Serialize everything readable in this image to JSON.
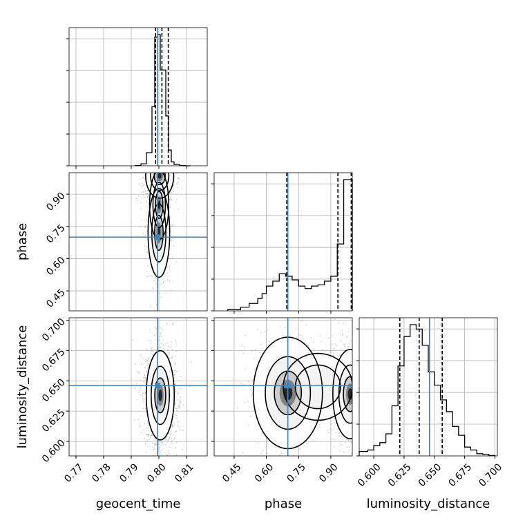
{
  "chart_data": {
    "type": "corner",
    "parameters": [
      "geocent_time",
      "phase",
      "luminosity_distance"
    ],
    "grid": true,
    "colors": {
      "truth": "#4682b4",
      "contour": "#000000",
      "scatter": "#9a9a9a"
    },
    "ranges": {
      "geocent_time": [
        0.7675,
        0.8175
      ],
      "phase": [
        0.357,
        1.0
      ],
      "luminosity_distance": [
        0.588,
        0.702
      ]
    },
    "ticks": {
      "geocent_time": [
        0.77,
        0.78,
        0.79,
        0.8,
        0.81
      ],
      "phase": [
        0.45,
        0.6,
        0.75,
        0.9
      ],
      "luminosity_distance": [
        0.6,
        0.625,
        0.65,
        0.675,
        0.7
      ]
    },
    "tick_labels": {
      "geocent_time": [
        "0.77",
        "0.78",
        "0.79",
        "0.80",
        "0.81"
      ],
      "phase": [
        "0.45",
        "0.60",
        "0.75",
        "0.90"
      ],
      "luminosity_distance": [
        "0.600",
        "0.625",
        "0.650",
        "0.675",
        "0.700"
      ]
    },
    "truths": {
      "geocent_time": 0.7995,
      "phase": 0.7,
      "luminosity_distance": 0.646
    },
    "quantiles": {
      "geocent_time": [
        0.7988,
        0.8011,
        0.8034
      ],
      "phase": [
        0.695,
        0.933,
        0.995
      ],
      "luminosity_distance": [
        0.6215,
        0.6375,
        0.6565
      ]
    },
    "histograms": {
      "geocent_time": {
        "edges": [
          0.7915,
          0.7935,
          0.7955,
          0.7975,
          0.7985,
          0.7995,
          0.8005,
          0.8025,
          0.8035,
          0.8045,
          0.8055,
          0.8075,
          0.8095,
          0.8115
        ],
        "counts": [
          0.2,
          1.5,
          10,
          45,
          98,
          100,
          73,
          38,
          12,
          3,
          1,
          0.2,
          0
        ]
      },
      "phase": {
        "edges": [
          0.42,
          0.48,
          0.52,
          0.56,
          0.58,
          0.6,
          0.63,
          0.66,
          0.69,
          0.72,
          0.75,
          0.78,
          0.81,
          0.84,
          0.87,
          0.9,
          0.93,
          0.96,
          0.99,
          1.0
        ],
        "counts": [
          0.5,
          1.5,
          3,
          5,
          7,
          10,
          12,
          15,
          14,
          12.5,
          10,
          9,
          10,
          10.5,
          12,
          14,
          27,
          53,
          53
        ]
      },
      "luminosity_distance": {
        "edges": [
          0.588,
          0.595,
          0.6,
          0.605,
          0.61,
          0.615,
          0.62,
          0.625,
          0.63,
          0.635,
          0.64,
          0.645,
          0.65,
          0.655,
          0.66,
          0.665,
          0.67,
          0.675,
          0.68,
          0.685,
          0.69,
          0.695,
          0.7
        ],
        "counts": [
          3,
          4,
          7,
          9,
          15,
          34,
          61,
          81,
          89,
          86,
          75,
          57,
          48,
          38,
          30,
          20,
          14,
          6,
          4,
          1.5,
          1,
          0.3
        ]
      }
    },
    "density_blobs": {
      "phase_vs_geocent_time": [
        {
          "x": 0.8003,
          "y": 0.985,
          "sx": 0.0022,
          "sy": 0.045,
          "w": 0.45
        },
        {
          "x": 0.8,
          "y": 0.72,
          "sx": 0.0017,
          "sy": 0.09,
          "w": 0.35
        },
        {
          "x": 0.8001,
          "y": 0.85,
          "sx": 0.0015,
          "sy": 0.07,
          "w": 0.2
        }
      ],
      "luminosity_distance_vs_geocent_time": [
        {
          "x": 0.8005,
          "y": 0.638,
          "sx": 0.0022,
          "sy": 0.016,
          "w": 1.0
        }
      ],
      "luminosity_distance_vs_phase": [
        {
          "x": 0.99,
          "y": 0.639,
          "sx": 0.035,
          "sy": 0.016,
          "w": 0.55
        },
        {
          "x": 0.7,
          "y": 0.64,
          "sx": 0.07,
          "sy": 0.02,
          "w": 0.35
        },
        {
          "x": 0.84,
          "y": 0.645,
          "sx": 0.07,
          "sy": 0.012,
          "w": 0.1
        }
      ]
    }
  }
}
